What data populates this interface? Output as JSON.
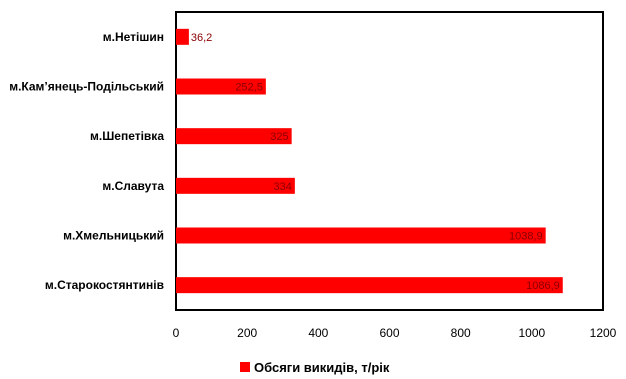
{
  "chart_data": {
    "type": "bar",
    "orientation": "horizontal",
    "categories": [
      "м.Нетішин",
      "м.Кам’янець-Подільський",
      "м.Шепетівка",
      "м.Славута",
      "м.Хмельницький",
      "м.Старокостянтинів"
    ],
    "values": [
      36.2,
      252.5,
      325,
      334,
      1038.9,
      1086.9
    ],
    "value_labels": [
      "36,2",
      "252,5",
      "325",
      "334",
      "1038,9",
      "1086,9"
    ],
    "series": [
      {
        "name": "Обсяги викидів, т/рік",
        "values": [
          36.2,
          252.5,
          325,
          334,
          1038.9,
          1086.9
        ]
      }
    ],
    "xlim": [
      0,
      1200
    ],
    "xticks": [
      "0",
      "200",
      "400",
      "600",
      "800",
      "1000",
      "1200"
    ],
    "grid": false,
    "legend": "bottom",
    "colors": {
      "bar": "#ff0000",
      "label": "#8a0000"
    }
  }
}
